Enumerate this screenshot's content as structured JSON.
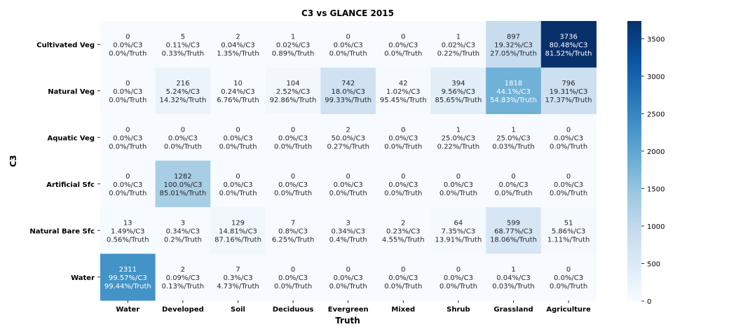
{
  "chart_data": {
    "type": "heatmap",
    "title": "C3 vs GLANCE 2015",
    "xlabel": "Truth",
    "ylabel": "C3",
    "x_categories": [
      "Water",
      "Developed",
      "Soil",
      "Deciduous",
      "Evergreen",
      "Mixed",
      "Shrub",
      "Grassland",
      "Agriculture"
    ],
    "y_categories": [
      "Cultivated Veg",
      "Natural Veg",
      "Aquatic Veg",
      "Artificial Sfc",
      "Natural Bare Sfc",
      "Water"
    ],
    "values": [
      [
        0,
        5,
        2,
        1,
        0,
        0,
        1,
        897,
        3736
      ],
      [
        0,
        216,
        10,
        104,
        742,
        42,
        394,
        1818,
        796
      ],
      [
        0,
        0,
        0,
        0,
        2,
        0,
        1,
        1,
        0
      ],
      [
        0,
        1282,
        0,
        0,
        0,
        0,
        0,
        0,
        0
      ],
      [
        13,
        3,
        129,
        7,
        3,
        2,
        64,
        599,
        51
      ],
      [
        2311,
        2,
        7,
        0,
        0,
        0,
        0,
        1,
        0
      ]
    ],
    "pct_c3": [
      [
        "0.0%/C3",
        "0.11%/C3",
        "0.04%/C3",
        "0.02%/C3",
        "0.0%/C3",
        "0.0%/C3",
        "0.02%/C3",
        "19.32%/C3",
        "80.48%/C3"
      ],
      [
        "0.0%/C3",
        "5.24%/C3",
        "0.24%/C3",
        "2.52%/C3",
        "18.0%/C3",
        "1.02%/C3",
        "9.56%/C3",
        "44.1%/C3",
        "19.31%/C3"
      ],
      [
        "0.0%/C3",
        "0.0%/C3",
        "0.0%/C3",
        "0.0%/C3",
        "50.0%/C3",
        "0.0%/C3",
        "25.0%/C3",
        "25.0%/C3",
        "0.0%/C3"
      ],
      [
        "0.0%/C3",
        "100.0%/C3",
        "0.0%/C3",
        "0.0%/C3",
        "0.0%/C3",
        "0.0%/C3",
        "0.0%/C3",
        "0.0%/C3",
        "0.0%/C3"
      ],
      [
        "1.49%/C3",
        "0.34%/C3",
        "14.81%/C3",
        "0.8%/C3",
        "0.34%/C3",
        "0.23%/C3",
        "7.35%/C3",
        "68.77%/C3",
        "5.86%/C3"
      ],
      [
        "99.57%/C3",
        "0.09%/C3",
        "0.3%/C3",
        "0.0%/C3",
        "0.0%/C3",
        "0.0%/C3",
        "0.0%/C3",
        "0.04%/C3",
        "0.0%/C3"
      ]
    ],
    "pct_truth": [
      [
        "0.0%/Truth",
        "0.33%/Truth",
        "1.35%/Truth",
        "0.89%/Truth",
        "0.0%/Truth",
        "0.0%/Truth",
        "0.22%/Truth",
        "27.05%/Truth",
        "81.52%/Truth"
      ],
      [
        "0.0%/Truth",
        "14.32%/Truth",
        "6.76%/Truth",
        "92.86%/Truth",
        "99.33%/Truth",
        "95.45%/Truth",
        "85.65%/Truth",
        "54.83%/Truth",
        "17.37%/Truth"
      ],
      [
        "0.0%/Truth",
        "0.0%/Truth",
        "0.0%/Truth",
        "0.0%/Truth",
        "0.27%/Truth",
        "0.0%/Truth",
        "0.22%/Truth",
        "0.03%/Truth",
        "0.0%/Truth"
      ],
      [
        "0.0%/Truth",
        "85.01%/Truth",
        "0.0%/Truth",
        "0.0%/Truth",
        "0.0%/Truth",
        "0.0%/Truth",
        "0.0%/Truth",
        "0.0%/Truth",
        "0.0%/Truth"
      ],
      [
        "0.56%/Truth",
        "0.2%/Truth",
        "87.16%/Truth",
        "6.25%/Truth",
        "0.4%/Truth",
        "4.55%/Truth",
        "13.91%/Truth",
        "18.06%/Truth",
        "1.11%/Truth"
      ],
      [
        "99.44%/Truth",
        "0.13%/Truth",
        "4.73%/Truth",
        "0.0%/Truth",
        "0.0%/Truth",
        "0.0%/Truth",
        "0.0%/Truth",
        "0.03%/Truth",
        "0.0%/Truth"
      ]
    ],
    "colorbar": {
      "range": [
        0,
        3736
      ],
      "ticks": [
        0,
        500,
        1000,
        1500,
        2000,
        2500,
        3000,
        3500
      ],
      "colormap": "Blues"
    },
    "grid": false,
    "legend": "colorbar-right"
  }
}
